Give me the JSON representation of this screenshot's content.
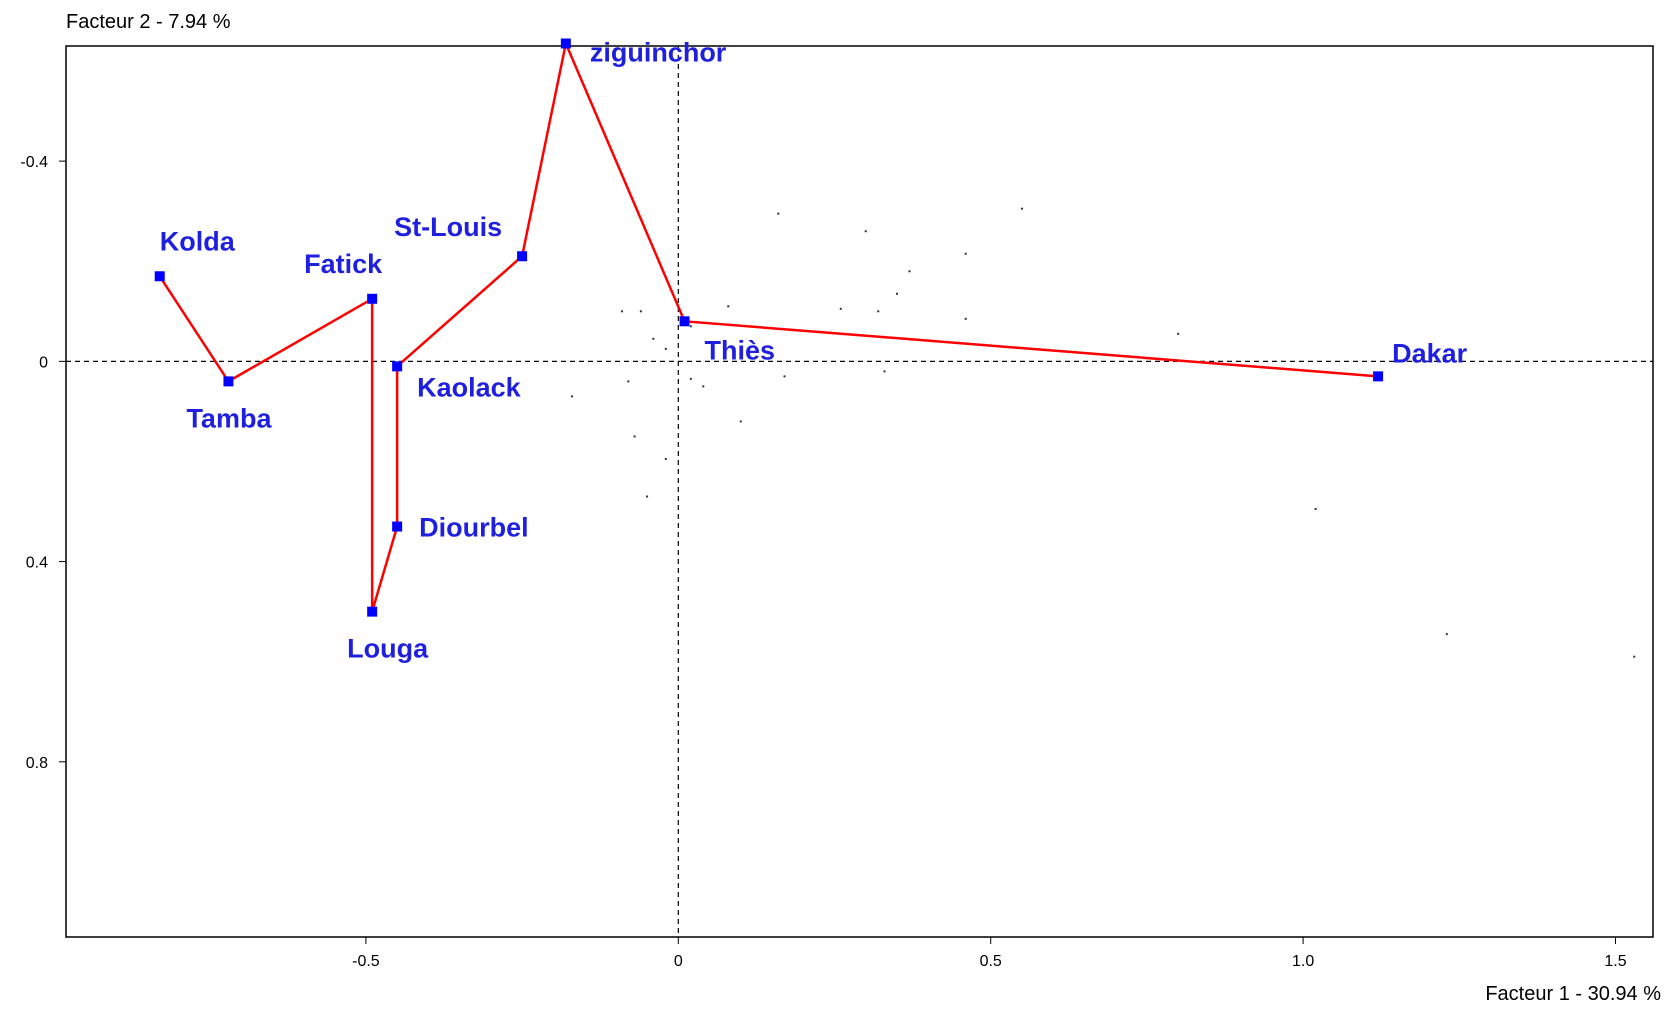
{
  "chart_data": {
    "type": "scatter",
    "title": "",
    "xlabel": "Facteur 1  -  30.94 %",
    "ylabel": "Facteur 2  -  7.94 %",
    "xlim": [
      -0.98,
      1.56
    ],
    "ylim": [
      1.15,
      -0.63
    ],
    "y_axis_inverted": true,
    "x_ticks": [
      -0.5,
      0,
      0.5,
      1.0,
      1.5
    ],
    "x_tick_labels": [
      "-0.5",
      "0",
      "0.5",
      "1.0",
      "1.5"
    ],
    "y_ticks": [
      -0.4,
      0,
      0.4,
      0.8
    ],
    "y_tick_labels": [
      "-0.4",
      "0",
      "0.4",
      "0.8"
    ],
    "grid": false,
    "zero_lines": "dashed",
    "colors": {
      "points": "#0000ff",
      "path_line": "#ff0000",
      "labels": "#1f1fe0",
      "dots": "#333333"
    },
    "series": [
      {
        "type": "labeled-path",
        "points": [
          {
            "label": "Kolda",
            "x": -0.83,
            "y": -0.17
          },
          {
            "label": "Tamba",
            "x": -0.72,
            "y": 0.04
          },
          {
            "label": "Fatick",
            "x": -0.49,
            "y": -0.125
          },
          {
            "label": "Louga",
            "x": -0.49,
            "y": 0.5
          },
          {
            "label": "Diourbel",
            "x": -0.45,
            "y": 0.33
          },
          {
            "label": "Kaolack",
            "x": -0.45,
            "y": 0.01
          },
          {
            "label": "St-Louis",
            "x": -0.25,
            "y": -0.21
          },
          {
            "label": "ziguinchor",
            "x": -0.18,
            "y": -0.635
          },
          {
            "label": "Thiès",
            "x": 0.01,
            "y": -0.08
          },
          {
            "label": "Dakar",
            "x": 1.12,
            "y": 0.03
          }
        ]
      },
      {
        "type": "scatter-dots",
        "points": [
          {
            "x": 0.16,
            "y": -0.295
          },
          {
            "x": 0.55,
            "y": -0.305
          },
          {
            "x": 0.3,
            "y": -0.26
          },
          {
            "x": 0.46,
            "y": -0.215
          },
          {
            "x": 0.37,
            "y": -0.18
          },
          {
            "x": 0.35,
            "y": -0.135
          },
          {
            "x": 0.26,
            "y": -0.105
          },
          {
            "x": 0.32,
            "y": -0.1
          },
          {
            "x": 0.46,
            "y": -0.085
          },
          {
            "x": 0.08,
            "y": -0.11
          },
          {
            "x": -0.09,
            "y": -0.1
          },
          {
            "x": -0.06,
            "y": -0.1
          },
          {
            "x": 0.02,
            "y": -0.07
          },
          {
            "x": -0.04,
            "y": -0.045
          },
          {
            "x": -0.02,
            "y": -0.025
          },
          {
            "x": 0.8,
            "y": -0.055
          },
          {
            "x": -0.08,
            "y": 0.04
          },
          {
            "x": 0.02,
            "y": 0.035
          },
          {
            "x": 0.04,
            "y": 0.05
          },
          {
            "x": 0.17,
            "y": 0.03
          },
          {
            "x": 0.33,
            "y": 0.02
          },
          {
            "x": -0.17,
            "y": 0.07
          },
          {
            "x": 0.1,
            "y": 0.12
          },
          {
            "x": -0.07,
            "y": 0.15
          },
          {
            "x": -0.02,
            "y": 0.195
          },
          {
            "x": -0.05,
            "y": 0.27
          },
          {
            "x": 1.02,
            "y": 0.295
          },
          {
            "x": 1.23,
            "y": 0.545
          },
          {
            "x": 1.53,
            "y": 0.59
          }
        ]
      }
    ]
  }
}
